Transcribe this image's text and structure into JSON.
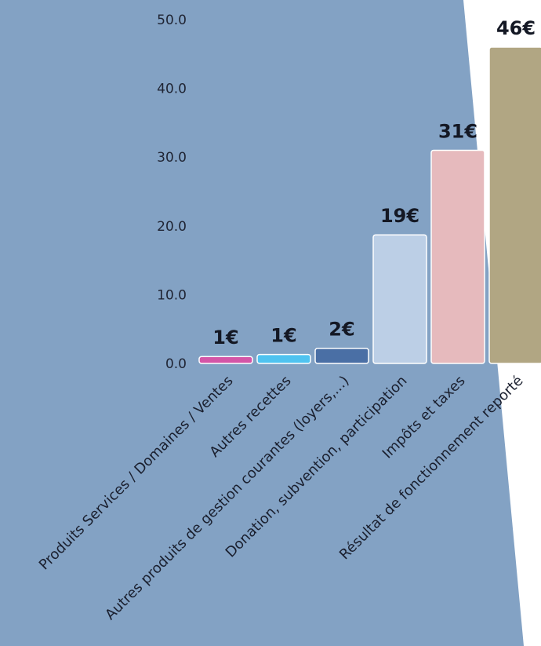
{
  "chart_data": {
    "type": "bar",
    "categories": [
      "Produits Services / Domaines / Ventes",
      "Autres recettes",
      "Autres produits de gestion courantes (loyers,...)",
      "Donation, subvention, participation",
      "Impôts et taxes",
      "Résultat de fonctionnement reporté"
    ],
    "values": [
      1,
      1.3,
      2.2,
      18.7,
      31,
      46
    ],
    "data_labels": [
      "1€",
      "1€",
      "2€",
      "19€",
      "31€",
      "46€"
    ],
    "bar_colors": [
      "#d455a7",
      "#4fc3f0",
      "#4a6fa5",
      "#bccfe6",
      "#e6babd",
      "#b1a683"
    ],
    "y_ticks": [
      "0.0",
      "10.0",
      "20.0",
      "30.0",
      "40.0",
      "50.0"
    ],
    "ylim": [
      0,
      50
    ],
    "grid": false,
    "legend": "none"
  },
  "colors": {
    "background_shape": "#83a2c4",
    "page": "#ffffff",
    "bar_border": "#ffffff"
  }
}
